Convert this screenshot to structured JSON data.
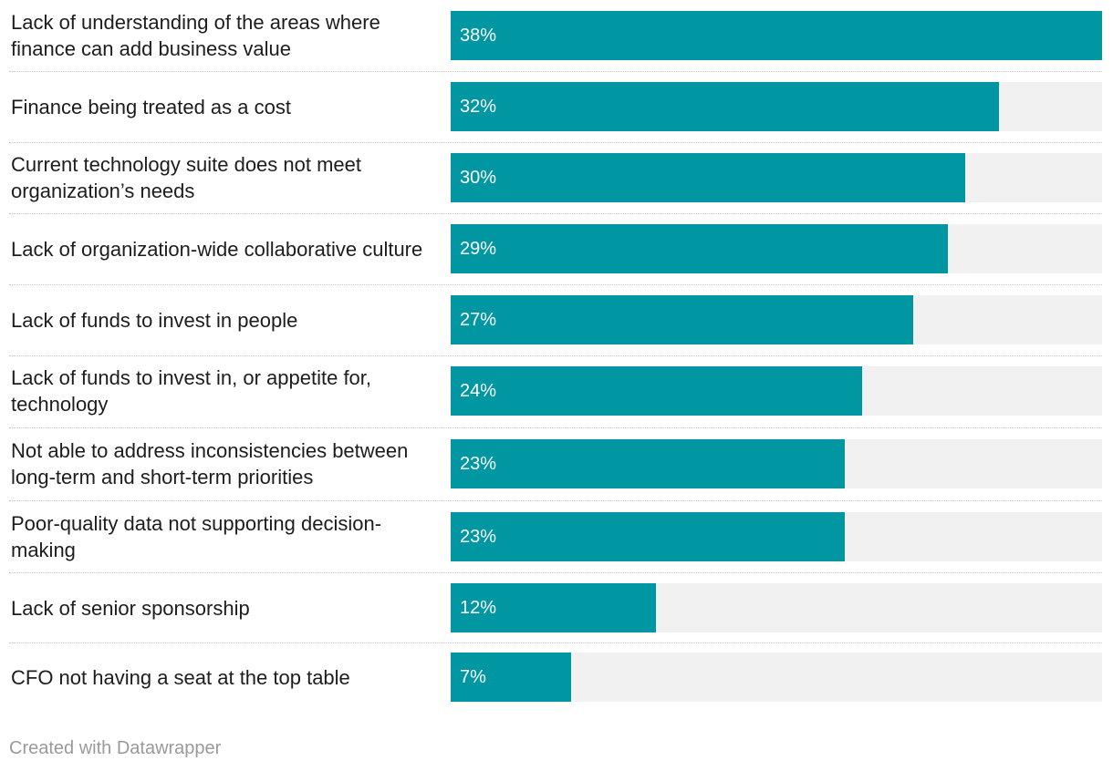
{
  "chart_data": {
    "type": "bar",
    "orientation": "horizontal",
    "categories": [
      "Lack of understanding of the areas where finance can add business value",
      "Finance being treated as a cost",
      "Current technology suite does not meet organization’s needs",
      "Lack of organization-wide collaborative culture",
      "Lack of funds to invest in people",
      "Lack of funds to invest in, or appetite for, technology",
      "Not able to address inconsistencies between long-term and short-term priorities",
      "Poor-quality data not supporting decision-making",
      "Lack of senior sponsorship",
      "CFO not having a seat at the top table"
    ],
    "values": [
      38,
      32,
      30,
      29,
      27,
      24,
      23,
      23,
      12,
      7
    ],
    "value_labels": [
      "38%",
      "32%",
      "30%",
      "29%",
      "27%",
      "24%",
      "23%",
      "23%",
      "12%",
      "7%"
    ],
    "xlim": [
      0,
      38
    ],
    "title": "",
    "xlabel": "",
    "ylabel": "",
    "grid": false,
    "bar_color": "#0096a2",
    "track_color": "#f1f1f1"
  },
  "footer": {
    "credit": "Created with Datawrapper"
  }
}
